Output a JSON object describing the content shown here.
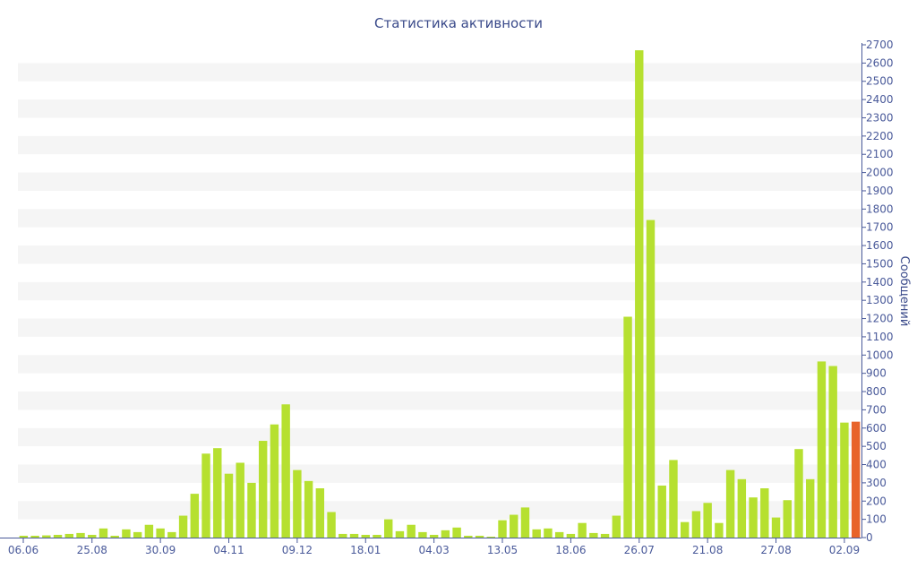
{
  "chart_data": {
    "type": "bar",
    "title": "Статистика активности",
    "ylabel": "Сообщений",
    "xlabel": "",
    "ylim": [
      0,
      2700
    ],
    "y_ticks": [
      0,
      100,
      200,
      300,
      400,
      500,
      600,
      700,
      800,
      900,
      1000,
      1100,
      1200,
      1300,
      1400,
      1500,
      1600,
      1700,
      1800,
      1900,
      2000,
      2100,
      2200,
      2300,
      2400,
      2500,
      2600,
      2700
    ],
    "x_tick_labels": [
      {
        "label": "06.06",
        "index": 0
      },
      {
        "label": "25.08",
        "index": 6.5
      },
      {
        "label": "30.09",
        "index": 12.5
      },
      {
        "label": "04.11",
        "index": 18.5
      },
      {
        "label": "09.12",
        "index": 24.5
      },
      {
        "label": "18.01",
        "index": 30.5
      },
      {
        "label": "04.03",
        "index": 36.5
      },
      {
        "label": "13.05",
        "index": 42.5
      },
      {
        "label": "18.06",
        "index": 48.5
      },
      {
        "label": "26.07",
        "index": 54.5
      },
      {
        "label": "21.08",
        "index": 60.5
      },
      {
        "label": "27.08",
        "index": 66.5
      },
      {
        "label": "02.09",
        "index": 72.5
      }
    ],
    "grid": "alternating horizontal bands",
    "y_axis_position": "right",
    "colors": {
      "bar": "#b6e030",
      "highlight_bar": "#e8632a",
      "axis": "#4a5a9a",
      "band": "#f5f5f5"
    },
    "values": [
      10,
      10,
      12,
      15,
      20,
      25,
      15,
      50,
      10,
      45,
      30,
      70,
      50,
      30,
      120,
      240,
      460,
      490,
      350,
      410,
      300,
      530,
      620,
      730,
      370,
      310,
      270,
      140,
      20,
      20,
      15,
      15,
      100,
      35,
      70,
      30,
      15,
      40,
      55,
      10,
      10,
      5,
      95,
      125,
      165,
      45,
      50,
      30,
      20,
      80,
      25,
      20,
      120,
      1210,
      2670,
      1740,
      285,
      425,
      85,
      145,
      190,
      80,
      370,
      320,
      220,
      270,
      110,
      205,
      485,
      320,
      965,
      940,
      630,
      635
    ],
    "highlight_index": 73
  }
}
